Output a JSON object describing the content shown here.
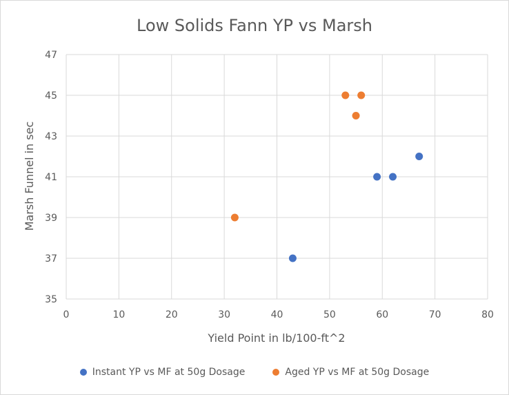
{
  "chart_data": {
    "type": "scatter",
    "title": "Low Solids Fann YP vs Marsh",
    "xlabel": "Yield Point in lb/100-ft^2",
    "ylabel": "Marsh Funnel in sec",
    "xlim": [
      0,
      80
    ],
    "ylim": [
      35,
      47
    ],
    "x_ticks": [
      0,
      10,
      20,
      30,
      40,
      50,
      60,
      70,
      80
    ],
    "y_ticks": [
      35,
      37,
      39,
      41,
      43,
      45,
      47
    ],
    "grid": true,
    "legend_position": "bottom",
    "series": [
      {
        "name": "Instant YP vs MF at 50g Dosage",
        "color": "#4472c4",
        "points": [
          {
            "x": 43,
            "y": 37
          },
          {
            "x": 59,
            "y": 41
          },
          {
            "x": 62,
            "y": 41
          },
          {
            "x": 67,
            "y": 42
          }
        ]
      },
      {
        "name": "Aged YP vs MF at 50g Dosage",
        "color": "#ed7d31",
        "points": [
          {
            "x": 32,
            "y": 39
          },
          {
            "x": 53,
            "y": 45
          },
          {
            "x": 56,
            "y": 45
          },
          {
            "x": 55,
            "y": 44
          }
        ]
      }
    ]
  }
}
